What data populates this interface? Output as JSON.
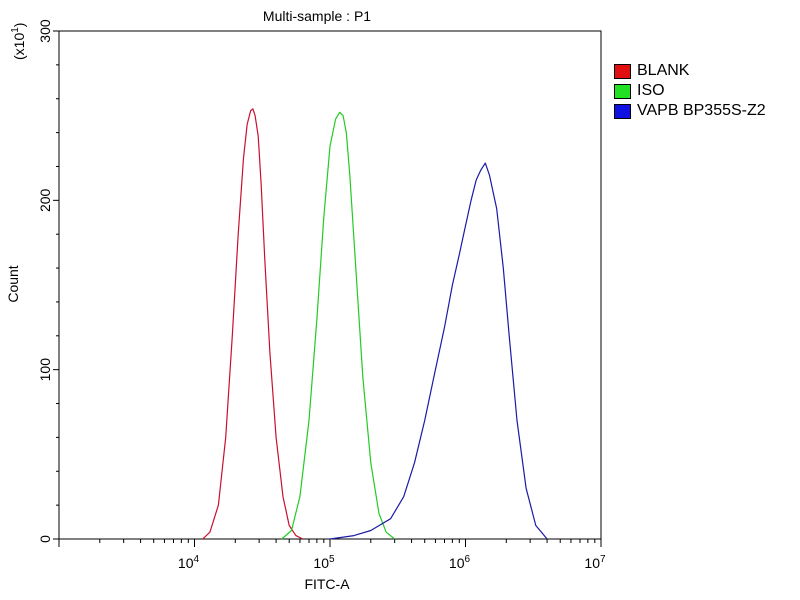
{
  "chart_data": {
    "type": "line",
    "title": "Multi-sample : P1",
    "xlabel": "FITC-A",
    "ylabel": "Count",
    "y_multiplier_label": "(x10",
    "y_multiplier_exp": "1",
    "x_scale": "log",
    "xlim": [
      1000,
      10000000
    ],
    "ylim": [
      0,
      300
    ],
    "x_tick_labels": [
      {
        "base": "10",
        "exp": "4",
        "value": 10000
      },
      {
        "base": "10",
        "exp": "5",
        "value": 100000
      },
      {
        "base": "10",
        "exp": "6",
        "value": 1000000
      },
      {
        "base": "10",
        "exp": "7",
        "value": 10000000
      }
    ],
    "y_ticks": [
      0,
      100,
      200,
      300
    ],
    "y_tick_labels": [
      "0",
      "100",
      "200",
      "300"
    ],
    "grid": false,
    "legend_placement": "right",
    "series": [
      {
        "name": "BLANK",
        "color": "#c8102e",
        "x": [
          11500,
          13000,
          15000,
          17000,
          19000,
          21000,
          23000,
          24500,
          26000,
          27000,
          28000,
          29500,
          31000,
          33000,
          36000,
          40000,
          45000,
          50000,
          56000,
          63000
        ],
        "y": [
          0,
          4,
          20,
          60,
          120,
          180,
          225,
          245,
          253,
          254,
          250,
          238,
          210,
          165,
          110,
          60,
          25,
          8,
          2,
          0
        ]
      },
      {
        "name": "ISO",
        "color": "#22cc22",
        "x": [
          44000,
          52000,
          60000,
          70000,
          80000,
          90000,
          100000,
          110000,
          118000,
          125000,
          132000,
          140000,
          155000,
          175000,
          200000,
          230000,
          260000,
          300000
        ],
        "y": [
          0,
          5,
          25,
          70,
          130,
          190,
          232,
          248,
          252,
          250,
          240,
          215,
          160,
          95,
          45,
          15,
          4,
          0
        ]
      },
      {
        "name": "VAPB BP355S-Z2",
        "color": "#1a1aa8",
        "x": [
          100000,
          150000,
          200000,
          280000,
          350000,
          420000,
          500000,
          600000,
          700000,
          800000,
          900000,
          1000000,
          1100000,
          1200000,
          1300000,
          1400000,
          1500000,
          1700000,
          1900000,
          2100000,
          2400000,
          2800000,
          3300000,
          4000000
        ],
        "y": [
          0,
          2,
          5,
          12,
          25,
          45,
          70,
          100,
          125,
          150,
          168,
          185,
          200,
          212,
          218,
          222,
          215,
          195,
          160,
          120,
          70,
          30,
          8,
          0
        ]
      }
    ]
  }
}
